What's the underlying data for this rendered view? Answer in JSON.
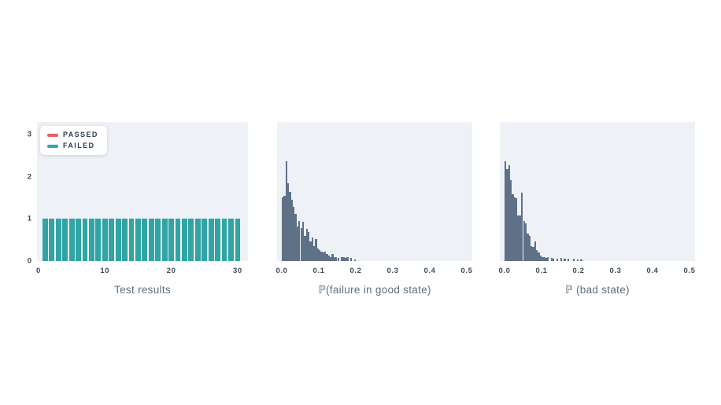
{
  "figure": {
    "background": "#ffffff",
    "plot_background": "#eef2f6",
    "tick_text_color": "#3b4b58",
    "title_text_color": "#5d6f80"
  },
  "chart_data": [
    {
      "type": "bar",
      "title": "Test results",
      "xlabel": "",
      "ylabel": "",
      "x_ticks": [
        "0",
        "10",
        "20",
        "30"
      ],
      "y_ticks": [
        "0",
        "1",
        "2",
        "3"
      ],
      "ylim": [
        0,
        3.3
      ],
      "x": [
        1,
        2,
        3,
        4,
        5,
        6,
        7,
        8,
        9,
        10,
        11,
        12,
        13,
        14,
        15,
        16,
        17,
        18,
        19,
        20,
        21,
        22,
        23,
        24,
        25,
        26,
        27,
        28,
        29,
        30
      ],
      "series": [
        {
          "name": "PASSED",
          "color": "#e56060",
          "values": [
            0,
            0,
            0,
            0,
            0,
            0,
            0,
            0,
            0,
            0,
            0,
            0,
            0,
            0,
            0,
            0,
            0,
            0,
            0,
            0,
            0,
            0,
            0,
            0,
            0,
            0,
            0,
            0,
            0,
            0
          ]
        },
        {
          "name": "FAILED",
          "color": "#31a4a4",
          "values": [
            1,
            1,
            1,
            1,
            1,
            1,
            1,
            1,
            1,
            1,
            1,
            1,
            1,
            1,
            1,
            1,
            1,
            1,
            1,
            1,
            1,
            1,
            1,
            1,
            1,
            1,
            1,
            1,
            1,
            1
          ]
        }
      ],
      "legend": {
        "position": "top-left",
        "entries": [
          {
            "label": "PASSED",
            "color": "#e56060"
          },
          {
            "label": "FAILED",
            "color": "#31a4a4"
          }
        ]
      }
    },
    {
      "type": "histogram",
      "title": "ℙ(failure in good state)",
      "bar_color": "#5f7186",
      "x_ticks": [
        "0.0",
        "0.1",
        "0.2",
        "0.3",
        "0.4",
        "0.5"
      ],
      "xlim": [
        0,
        0.5
      ],
      "y_axis": "unlabeled (relative frequency, fraction of plot height)",
      "bin_start": 0.0,
      "bin_width": 0.005,
      "heights_rel": [
        0.46,
        0.47,
        0.72,
        0.56,
        0.5,
        0.44,
        0.39,
        0.34,
        0.25,
        0.29,
        0.24,
        0.28,
        0.18,
        0.23,
        0.21,
        0.14,
        0.17,
        0.11,
        0.16,
        0.09,
        0.08,
        0.07,
        0.06,
        0.07,
        0.05,
        0.04,
        0.03,
        0.05,
        0.03,
        0.03,
        0.02,
        0,
        0.03,
        0.03,
        0.02,
        0.03,
        0,
        0.02,
        0,
        0.01
      ]
    },
    {
      "type": "histogram",
      "title": "ℙ (bad state)",
      "bar_color": "#5f7186",
      "x_ticks": [
        "0.0",
        "0.1",
        "0.2",
        "0.3",
        "0.4",
        "0.5"
      ],
      "xlim": [
        0,
        0.5
      ],
      "y_axis": "unlabeled (relative frequency, fraction of plot height)",
      "bin_start": 0.0,
      "bin_width": 0.005,
      "heights_rel": [
        0.72,
        0.66,
        0.69,
        0.58,
        0.48,
        0.46,
        0.45,
        0.33,
        0.33,
        0.49,
        0.29,
        0.27,
        0.2,
        0.18,
        0.11,
        0.1,
        0.14,
        0.08,
        0.06,
        0.04,
        0.03,
        0.03,
        0.02,
        0.03,
        0,
        0.02,
        0.015,
        0,
        0.015,
        0,
        0.02,
        0,
        0.015,
        0,
        0.015,
        0,
        0,
        0.015,
        0,
        0.01,
        0,
        0.01
      ]
    }
  ]
}
